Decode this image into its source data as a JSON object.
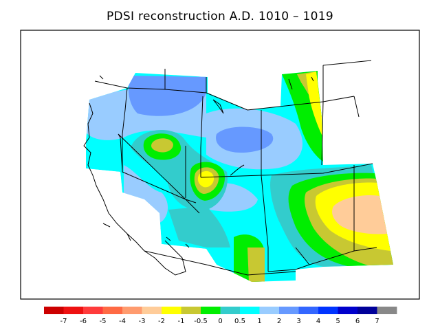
{
  "title": "PDSI reconstruction A.D. 1010 – 1019",
  "colorbar": {
    "colors": [
      "#cc0000",
      "#ee1111",
      "#ff3b3b",
      "#ff6a44",
      "#ff9b6e",
      "#ffcc99",
      "#ffff00",
      "#c8c832",
      "#00ee00",
      "#33cccc",
      "#00ffff",
      "#99ccff",
      "#6699ff",
      "#3366ff",
      "#0033ff",
      "#0000cc",
      "#000099",
      "#888888"
    ],
    "labels": [
      "-7",
      "-6",
      "-5",
      "-4",
      "-3",
      "-2",
      "-1",
      "-0.5",
      "0",
      "0.5",
      "1",
      "2",
      "3",
      "4",
      "5",
      "6",
      "7"
    ]
  },
  "map_colors": {
    "background": "#00ffff",
    "light_blue": "#99ccff",
    "mid_blue": "#6699ff",
    "teal": "#33cccc",
    "green": "#00ee00",
    "olive": "#c8c832",
    "yellow": "#ffff00",
    "peach": "#ffcc99"
  }
}
